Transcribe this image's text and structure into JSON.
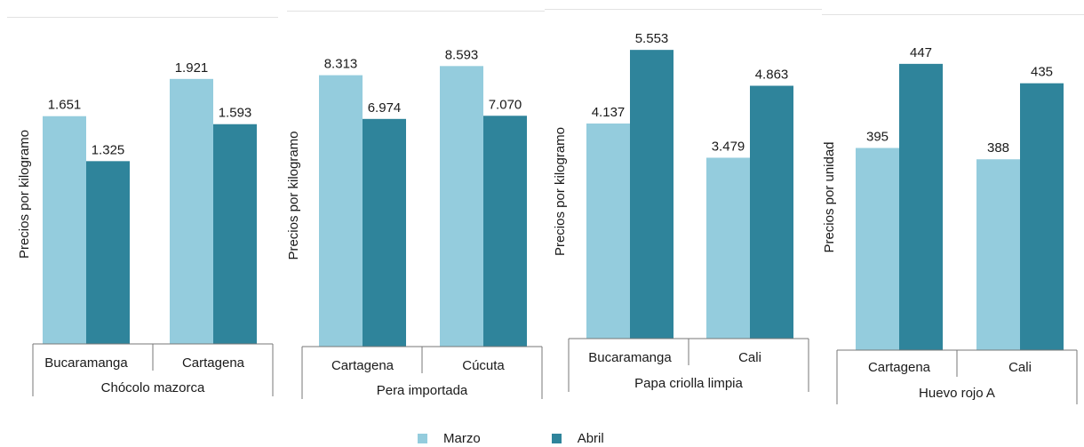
{
  "colors": {
    "marzo": "#94ccdd",
    "abril": "#2f849b",
    "axis": "#777777"
  },
  "legend": [
    {
      "label": "Marzo",
      "color": "#94ccdd"
    },
    {
      "label": "Abril",
      "color": "#2f849b"
    }
  ],
  "chart_data": [
    {
      "type": "bar",
      "group_label": "Chócolo mazorca",
      "ylabel": "Precios por kilogramo",
      "categories": [
        "Bucaramanga",
        "Cartagena"
      ],
      "series": [
        {
          "name": "Marzo",
          "values": [
            1651,
            1921
          ],
          "labels": [
            "1.651",
            "1.921"
          ]
        },
        {
          "name": "Abril",
          "values": [
            1325,
            1593
          ],
          "labels": [
            "1.325",
            "1.593"
          ]
        }
      ],
      "ylim": [
        0,
        2300
      ]
    },
    {
      "type": "bar",
      "group_label": "Pera importada",
      "ylabel": "Precios por kilogramo",
      "categories": [
        "Cartagena",
        "Cúcuta"
      ],
      "series": [
        {
          "name": "Marzo",
          "values": [
            8313,
            8593
          ],
          "labels": [
            "8.313",
            "8.593"
          ]
        },
        {
          "name": "Abril",
          "values": [
            6974,
            7070
          ],
          "labels": [
            "6.974",
            "7.070"
          ]
        }
      ],
      "ylim": [
        0,
        9800
      ]
    },
    {
      "type": "bar",
      "group_label": "Papa criolla limpia",
      "ylabel": "Precios por kilogramo",
      "categories": [
        "Bucaramanga",
        "Cali"
      ],
      "series": [
        {
          "name": "Marzo",
          "values": [
            4137,
            3479
          ],
          "labels": [
            "4.137",
            "3.479"
          ]
        },
        {
          "name": "Abril",
          "values": [
            5553,
            4863
          ],
          "labels": [
            "5.553",
            "4.863"
          ]
        }
      ],
      "ylim": [
        0,
        6000
      ]
    },
    {
      "type": "bar",
      "group_label": "Huevo rojo A",
      "ylabel": "Precios por unidad",
      "categories": [
        "Cartagena",
        "Cali"
      ],
      "series": [
        {
          "name": "Marzo",
          "values": [
            395,
            388
          ],
          "labels": [
            "395",
            "388"
          ]
        },
        {
          "name": "Abril",
          "values": [
            447,
            435
          ],
          "labels": [
            "447",
            "435"
          ]
        }
      ],
      "ylim": [
        270,
        470
      ]
    }
  ]
}
